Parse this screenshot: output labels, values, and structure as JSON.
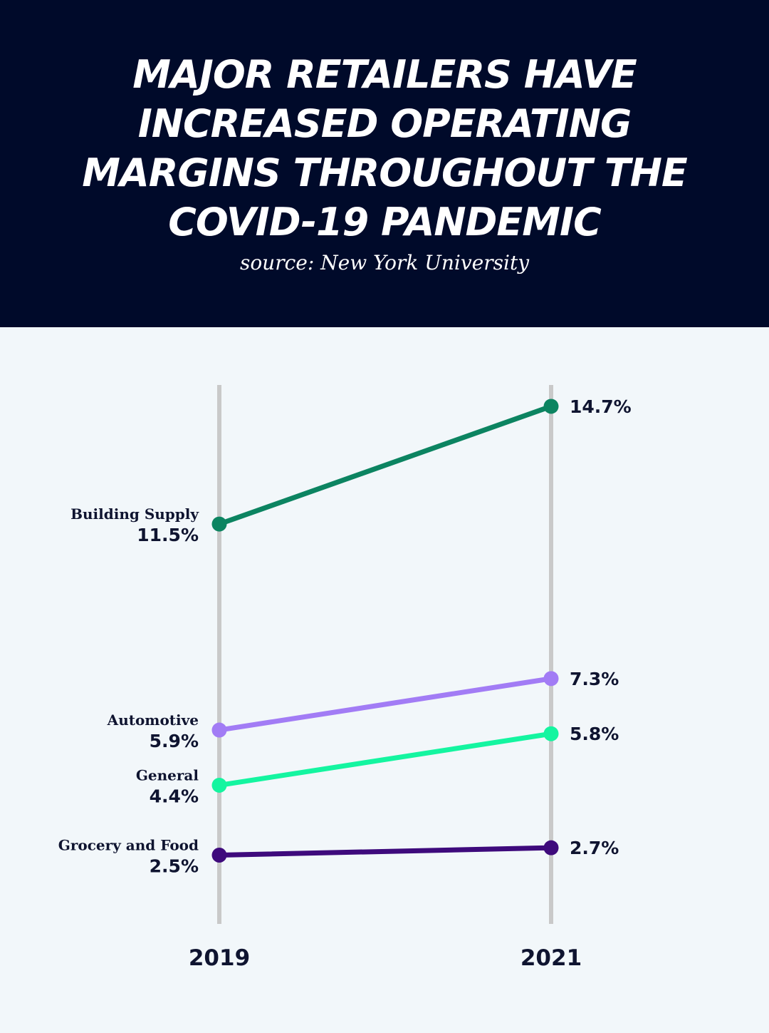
{
  "header": {
    "title": "MAJOR RETAILERS HAVE INCREASED OPERATING MARGINS THROUGHOUT THE COVID-19 PANDEMIC",
    "source": "source: New York University",
    "background": "#000a2a"
  },
  "chart_data": {
    "type": "line",
    "x": [
      "2019",
      "2021"
    ],
    "series": [
      {
        "name": "Building Supply",
        "values": [
          11.5,
          14.7
        ],
        "labels": [
          "11.5%",
          "14.7%"
        ],
        "color": "#0c8461"
      },
      {
        "name": "Automotive",
        "values": [
          5.9,
          7.3
        ],
        "labels": [
          "5.9%",
          "7.3%"
        ],
        "color": "#a27cf5"
      },
      {
        "name": "General",
        "values": [
          4.4,
          5.8
        ],
        "labels": [
          "4.4%",
          "5.8%"
        ],
        "color": "#14f5a0"
      },
      {
        "name": "Grocery and Food",
        "values": [
          2.5,
          2.7
        ],
        "labels": [
          "2.5%",
          "2.7%"
        ],
        "color": "#3e0a7c"
      }
    ],
    "axis_color": "#c9c9c9",
    "text_color": "#0f1430",
    "grid": false
  }
}
